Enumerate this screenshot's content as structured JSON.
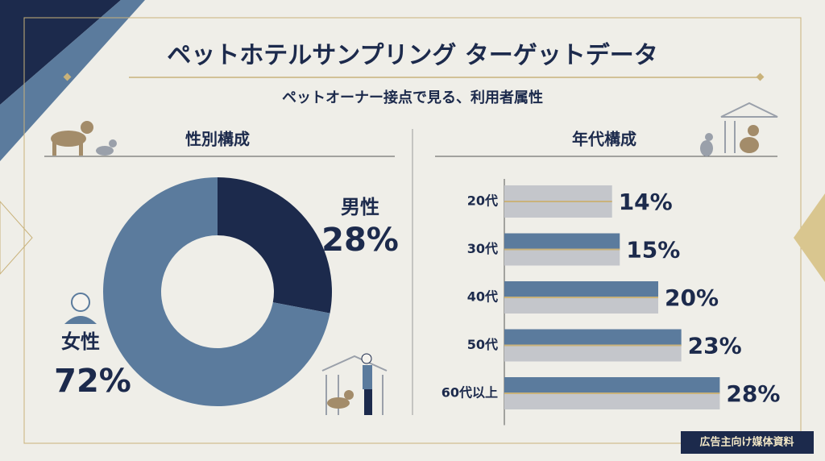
{
  "header": {
    "title": "ペットホテルサンプリング ターゲットデータ",
    "subtitle": "ペットオーナー接点で見る、利用者属性"
  },
  "chart_data": [
    {
      "type": "pie",
      "donut": true,
      "title": "性別構成",
      "categories": [
        "男性",
        "女性"
      ],
      "values": [
        28,
        72
      ],
      "value_labels": [
        "28%",
        "72%"
      ],
      "colors": [
        "#1c2a4c",
        "#5b7b9d"
      ]
    },
    {
      "type": "bar",
      "orientation": "horizontal",
      "title": "年代構成",
      "categories": [
        "20代",
        "30代",
        "40代",
        "50代",
        "60代以上"
      ],
      "values": [
        14,
        15,
        20,
        23,
        28
      ],
      "value_labels": [
        "14%",
        "15%",
        "20%",
        "23%",
        "28%"
      ],
      "colors": [
        "#c4c6cb",
        "#5b7b9d",
        "#5b7b9d",
        "#5b7b9d",
        "#5b7b9d"
      ]
    }
  ],
  "footer": "広告主向け媒体資料"
}
